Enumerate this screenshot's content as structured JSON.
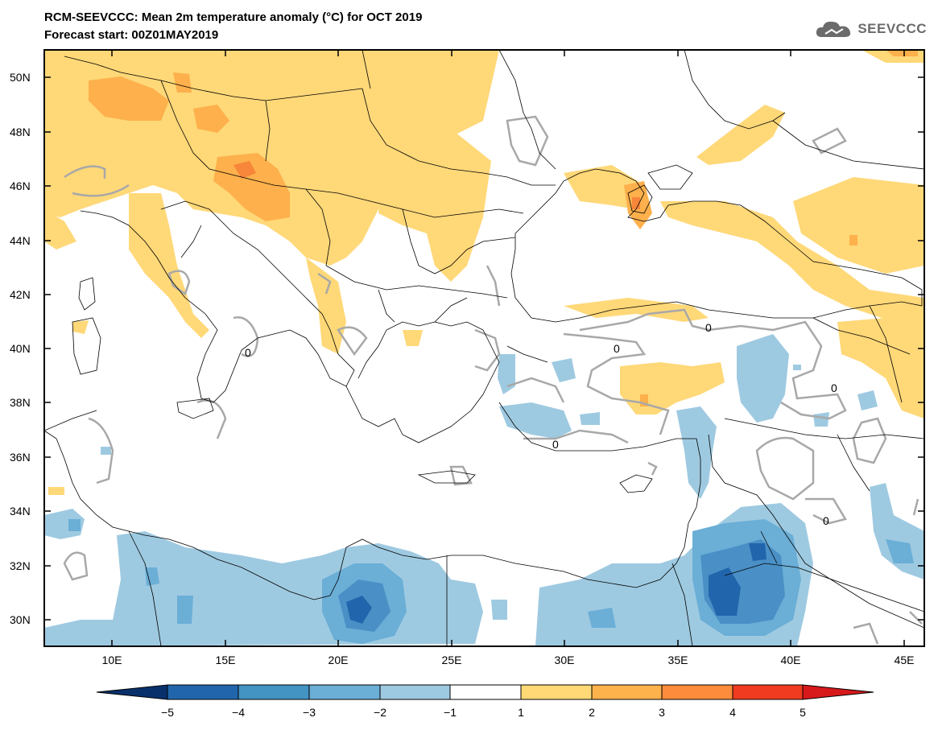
{
  "header": {
    "title_line1": "RCM-SEEVCCC: Mean 2m temperature anomaly (°C) for OCT 2019",
    "title_line2": "Forecast start: 00Z01MAY2019",
    "logo_text": "SEEVCCC"
  },
  "map": {
    "lat_labels": [
      "50N",
      "48N",
      "46N",
      "44N",
      "42N",
      "40N",
      "38N",
      "36N",
      "34N",
      "32N",
      "30N"
    ],
    "lon_labels": [
      "10E",
      "15E",
      "20E",
      "25E",
      "30E",
      "35E",
      "40E",
      "45E"
    ],
    "contour_labels": [
      "0",
      "0",
      "0",
      "0",
      "0",
      "0"
    ]
  },
  "colorbar": {
    "levels": [
      "−5",
      "−4",
      "−3",
      "−2",
      "−1",
      "1",
      "2",
      "3",
      "4",
      "5"
    ],
    "colors": [
      "#08306b",
      "#2166ac",
      "#4393c3",
      "#6baed6",
      "#9ecae1",
      "#ffffff",
      "#fed976",
      "#feb24c",
      "#fd8d3c",
      "#f03b20",
      "#d7191c"
    ]
  },
  "colors": {
    "warm1": "#ffd878",
    "warm2": "#fdb04b",
    "warm3": "#f7853a",
    "cool1": "#9ecae1",
    "cool2": "#6baed6",
    "cool3": "#4a90c6",
    "cool4": "#2166ac",
    "contour": "#a8a8a8",
    "land_border": "#000000"
  }
}
